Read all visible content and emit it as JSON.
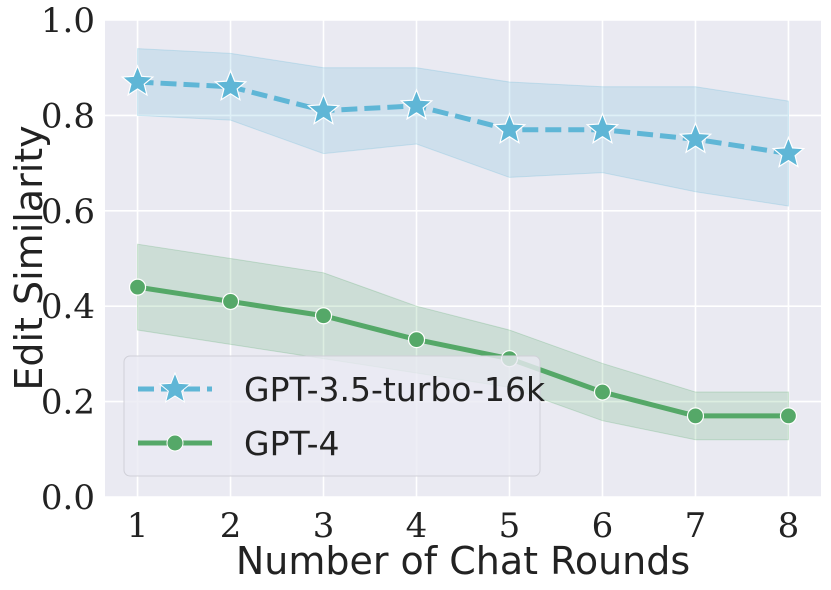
{
  "chart_data": {
    "type": "line",
    "title": "",
    "xlabel": "Number of Chat Rounds",
    "ylabel": "Edit Similarity",
    "x": [
      1,
      2,
      3,
      4,
      5,
      6,
      7,
      8
    ],
    "xlim": [
      0.65,
      8.35
    ],
    "ylim": [
      0.0,
      1.0
    ],
    "yticks": [
      0.0,
      0.2,
      0.4,
      0.6,
      0.8,
      1.0
    ],
    "ytick_labels": [
      "0.0",
      "0.2",
      "0.4",
      "0.6",
      "0.8",
      "1.0"
    ],
    "xtick_labels": [
      "1",
      "2",
      "3",
      "4",
      "5",
      "6",
      "7",
      "8"
    ],
    "grid": true,
    "legend_position": "lower-left",
    "series": [
      {
        "name": "GPT-3.5-turbo-16k",
        "color": "#5fb6d6",
        "line_style": "dashed",
        "marker": "star",
        "values": [
          0.87,
          0.86,
          0.81,
          0.82,
          0.77,
          0.77,
          0.75,
          0.72
        ],
        "band_lower": [
          0.8,
          0.79,
          0.72,
          0.74,
          0.67,
          0.68,
          0.64,
          0.61
        ],
        "band_upper": [
          0.94,
          0.93,
          0.9,
          0.9,
          0.87,
          0.86,
          0.86,
          0.83
        ]
      },
      {
        "name": "GPT-4",
        "color": "#55a868",
        "line_style": "solid",
        "marker": "circle",
        "values": [
          0.44,
          0.41,
          0.38,
          0.33,
          0.29,
          0.22,
          0.17,
          0.17
        ],
        "band_lower": [
          0.35,
          0.32,
          0.29,
          0.26,
          0.23,
          0.16,
          0.12,
          0.12
        ],
        "band_upper": [
          0.53,
          0.5,
          0.47,
          0.4,
          0.35,
          0.28,
          0.22,
          0.22
        ]
      }
    ]
  }
}
